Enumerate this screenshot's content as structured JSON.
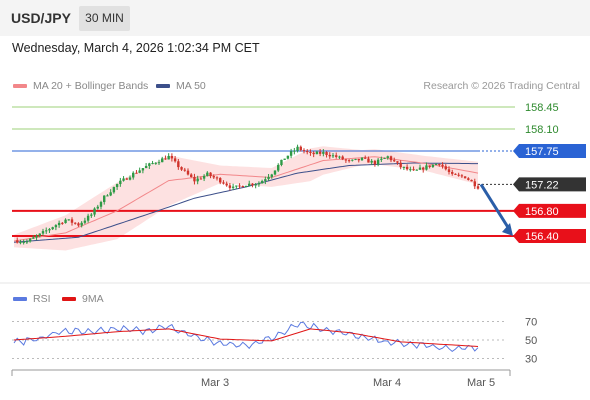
{
  "header": {
    "symbol": "USD/JPY",
    "timeframe": "30 MIN"
  },
  "datetime": "Wednesday, March 4, 2026 1:02:34 PM CET",
  "legend": {
    "ma20_label": "MA 20 + Bollinger Bands",
    "ma50_label": "MA 50",
    "credit": "Research © 2026 Trading Central"
  },
  "colors": {
    "up": "#2e9a46",
    "down": "#d0342c",
    "ma20": "#f2878a",
    "ma50": "#3c4f8a",
    "bollinger": "#fde1e1",
    "resistance": "#9ed07a",
    "pivot": "#2a63d4",
    "support": "#e8101a",
    "rsi": "#5b7ae0",
    "rsi_ma": "#e01515",
    "arrow": "#2a5ea8"
  },
  "rsi_legend": {
    "rsi_label": "RSI",
    "ma_label": "9MA"
  },
  "chart_data": [
    {
      "type": "candlestick",
      "title": "USD/JPY",
      "x_ticks": [
        "Mar 3",
        "Mar 4",
        "Mar 5"
      ],
      "ylim": [
        156.03,
        158.83
      ],
      "last_price": 157.22,
      "levels": [
        {
          "value": 158.45,
          "label": "158.45",
          "kind": "resistance"
        },
        {
          "value": 158.1,
          "label": "158.10",
          "kind": "resistance"
        },
        {
          "value": 157.75,
          "label": "157.75",
          "kind": "pivot"
        },
        {
          "value": 157.22,
          "label": "157.22",
          "kind": "last"
        },
        {
          "value": 156.8,
          "label": "156.80",
          "kind": "support"
        },
        {
          "value": 156.4,
          "label": "156.40",
          "kind": "support"
        }
      ],
      "forecast": {
        "from": 157.22,
        "to": 156.4
      },
      "anchors": [
        [
          0,
          156.33
        ],
        [
          4,
          156.31
        ],
        [
          8,
          156.42
        ],
        [
          12,
          156.55
        ],
        [
          16,
          156.66
        ],
        [
          20,
          156.58
        ],
        [
          24,
          156.74
        ],
        [
          28,
          157.02
        ],
        [
          32,
          157.22
        ],
        [
          36,
          157.36
        ],
        [
          40,
          157.48
        ],
        [
          44,
          157.58
        ],
        [
          48,
          157.66
        ],
        [
          52,
          157.46
        ],
        [
          56,
          157.28
        ],
        [
          60,
          157.38
        ],
        [
          64,
          157.28
        ],
        [
          68,
          157.16
        ],
        [
          72,
          157.22
        ],
        [
          76,
          157.24
        ],
        [
          80,
          157.4
        ],
        [
          84,
          157.64
        ],
        [
          88,
          157.8
        ],
        [
          92,
          157.7
        ],
        [
          96,
          157.72
        ],
        [
          100,
          157.66
        ],
        [
          104,
          157.58
        ],
        [
          108,
          157.62
        ],
        [
          112,
          157.56
        ],
        [
          116,
          157.66
        ],
        [
          120,
          157.5
        ],
        [
          124,
          157.42
        ],
        [
          128,
          157.5
        ],
        [
          132,
          157.56
        ],
        [
          136,
          157.36
        ],
        [
          140,
          157.34
        ],
        [
          144,
          157.18
        ]
      ],
      "ma20_anchors": [
        [
          0,
          156.32
        ],
        [
          16,
          156.45
        ],
        [
          32,
          156.8
        ],
        [
          48,
          157.28
        ],
        [
          64,
          157.38
        ],
        [
          80,
          157.33
        ],
        [
          96,
          157.6
        ],
        [
          112,
          157.66
        ],
        [
          128,
          157.55
        ],
        [
          144,
          157.4
        ]
      ],
      "ma50_anchors": [
        [
          0,
          156.3
        ],
        [
          20,
          156.38
        ],
        [
          40,
          156.72
        ],
        [
          56,
          157.0
        ],
        [
          72,
          157.18
        ],
        [
          88,
          157.4
        ],
        [
          104,
          157.52
        ],
        [
          124,
          157.56
        ],
        [
          144,
          157.55
        ]
      ],
      "band_halfwidth": [
        [
          0,
          0.1
        ],
        [
          16,
          0.28
        ],
        [
          32,
          0.45
        ],
        [
          48,
          0.4
        ],
        [
          64,
          0.14
        ],
        [
          80,
          0.15
        ],
        [
          92,
          0.26
        ],
        [
          108,
          0.12
        ],
        [
          128,
          0.12
        ],
        [
          144,
          0.18
        ]
      ]
    },
    {
      "type": "line",
      "title": "RSI",
      "y_ticks": [
        70,
        50,
        30
      ],
      "ylim": [
        20,
        80
      ],
      "rsi_anchors": [
        [
          0,
          47
        ],
        [
          8,
          52
        ],
        [
          16,
          60
        ],
        [
          24,
          58
        ],
        [
          32,
          62
        ],
        [
          40,
          60
        ],
        [
          48,
          64
        ],
        [
          56,
          54
        ],
        [
          64,
          46
        ],
        [
          72,
          44
        ],
        [
          80,
          52
        ],
        [
          88,
          68
        ],
        [
          96,
          62
        ],
        [
          104,
          56
        ],
        [
          112,
          50
        ],
        [
          120,
          46
        ],
        [
          128,
          44
        ],
        [
          136,
          40
        ],
        [
          144,
          42
        ]
      ],
      "ma_anchors": [
        [
          0,
          50
        ],
        [
          16,
          54
        ],
        [
          32,
          59
        ],
        [
          48,
          62
        ],
        [
          64,
          51
        ],
        [
          80,
          49
        ],
        [
          92,
          62
        ],
        [
          104,
          58
        ],
        [
          120,
          48
        ],
        [
          144,
          43
        ]
      ]
    }
  ]
}
